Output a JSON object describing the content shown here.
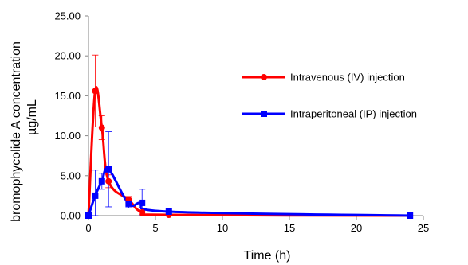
{
  "chart_data": {
    "type": "line",
    "title": "",
    "xlabel": "Time (h)",
    "ylabel_lines": [
      "bromophycolide A concentration",
      "µg/mL"
    ],
    "xlim": [
      0,
      25
    ],
    "ylim": [
      0,
      25
    ],
    "xticks": [
      0,
      5,
      10,
      15,
      20,
      25
    ],
    "yticks": [
      0,
      5,
      10,
      15,
      20,
      25
    ],
    "xtick_labels": [
      "0",
      "5",
      "10",
      "15",
      "20",
      "25"
    ],
    "ytick_labels": [
      "0.00",
      "5.00",
      "10.00",
      "15.00",
      "20.00",
      "25.00"
    ],
    "grid": false,
    "legend_position": "right",
    "series": [
      {
        "name": "Intravenous (IV) injection",
        "color": "#ff0000",
        "marker": "circle",
        "x": [
          0,
          0.5,
          1,
          1.5,
          3,
          4,
          6,
          24
        ],
        "y": [
          0,
          15.6,
          11.0,
          4.3,
          2.0,
          0.4,
          0.1,
          0.0
        ],
        "err": [
          0,
          4.5,
          1.5,
          0.8,
          0.4,
          0.2,
          0.05,
          0.0
        ]
      },
      {
        "name": "Intraperitoneal (IP) injection",
        "color": "#0000ff",
        "marker": "square",
        "x": [
          0,
          0.5,
          1,
          1.5,
          3,
          4,
          6,
          24
        ],
        "y": [
          0,
          2.5,
          4.3,
          5.8,
          1.5,
          1.6,
          0.5,
          0.0
        ],
        "err": [
          0,
          3.2,
          1.0,
          4.7,
          0.5,
          1.7,
          0.1,
          0.0
        ]
      }
    ]
  }
}
